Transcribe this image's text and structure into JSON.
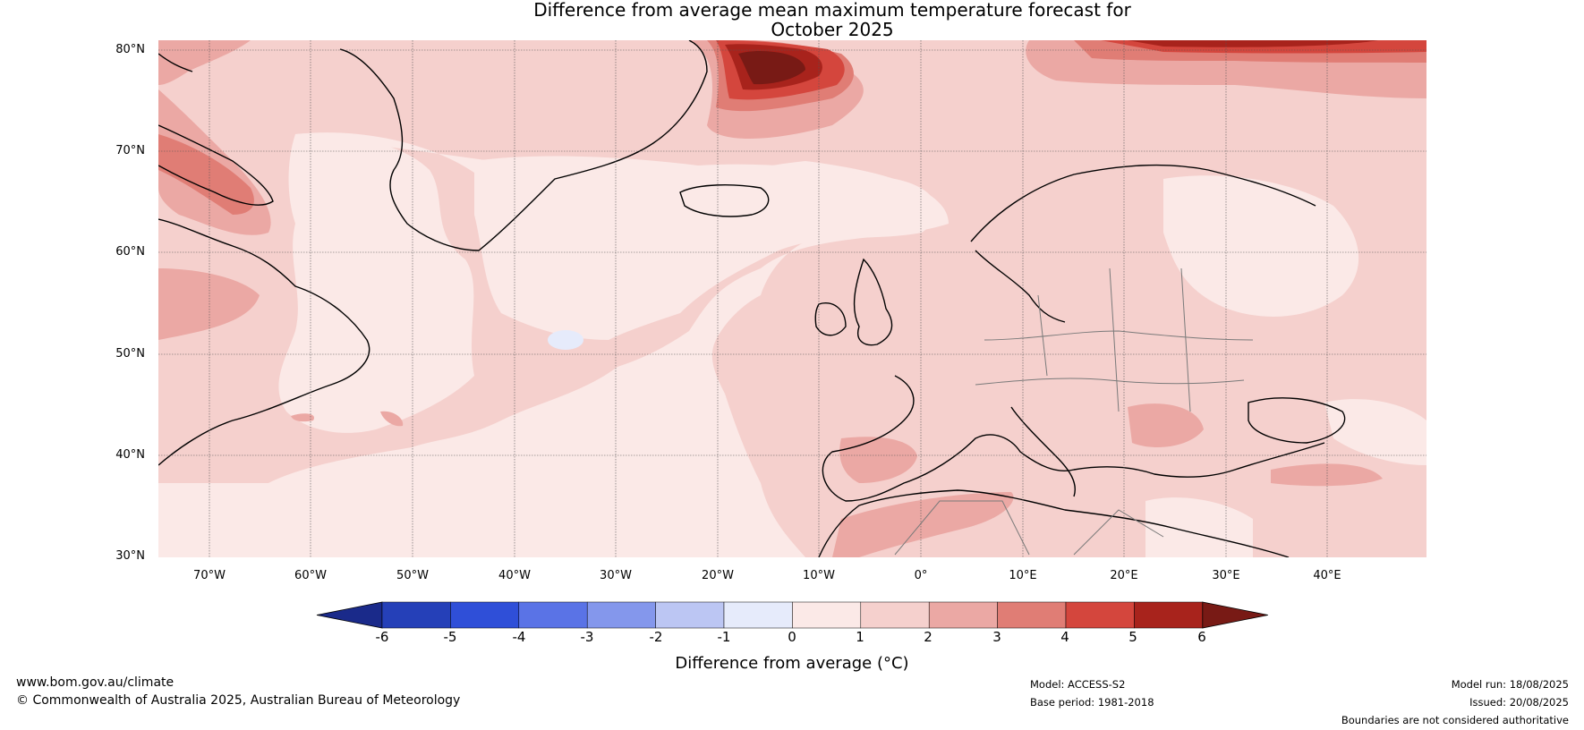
{
  "title_line1": "Difference from average mean maximum temperature forecast for",
  "title_line2": "October 2025",
  "lat_labels": [
    "80°N",
    "70°N",
    "60°N",
    "50°N",
    "40°N",
    "30°N"
  ],
  "lon_labels": [
    "70°W",
    "60°W",
    "50°W",
    "40°W",
    "30°W",
    "20°W",
    "10°W",
    "0°",
    "10°E",
    "20°E",
    "30°E",
    "40°E"
  ],
  "colorbar": {
    "title": "Difference from average (°C)",
    "ticks": [
      "-6",
      "-5",
      "-4",
      "-3",
      "-2",
      "-1",
      "0",
      "1",
      "2",
      "3",
      "4",
      "5",
      "6"
    ],
    "colors": [
      "#1a2a8a",
      "#2540b8",
      "#2f4fd8",
      "#5a73e6",
      "#8497ec",
      "#bcc6f3",
      "#e6ebfb",
      "#fbe9e7",
      "#f5d0cd",
      "#eba8a4",
      "#e07d75",
      "#d4463d",
      "#a8231c",
      "#781a15"
    ]
  },
  "footer": {
    "website": "www.bom.gov.au/climate",
    "copyright": "© Commonwealth of Australia 2025, Australian Bureau of Meteorology",
    "model": "Model: ACCESS-S2",
    "base_period": "Base period: 1981-2018",
    "model_run": "Model run: 18/08/2025",
    "issued": "Issued: 20/08/2025",
    "disclaimer": "Boundaries are not considered authoritative"
  }
}
